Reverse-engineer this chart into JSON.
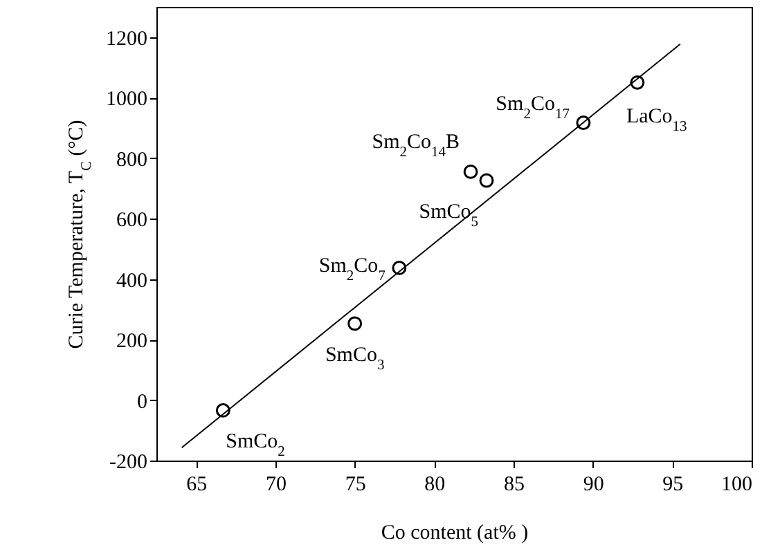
{
  "chart_data": {
    "type": "scatter",
    "xlabel": "Co content (at% )",
    "ylabel": "Curie Temperature, T$_{C}$ (°C)",
    "xlim": [
      62.5,
      100
    ],
    "ylim": [
      -200,
      1300
    ],
    "xticks": [
      65,
      70,
      75,
      80,
      85,
      90,
      95,
      100
    ],
    "yticks": [
      -200,
      0,
      200,
      400,
      600,
      800,
      1000,
      1200
    ],
    "series": [
      {
        "color": "#000000",
        "marker": "circle",
        "x": [
          66.7,
          75.0,
          77.8,
          82.3,
          83.3,
          89.4,
          92.8
        ],
        "values": [
          -34,
          253,
          437,
          755,
          726,
          917,
          1050
        ]
      },
      {
        "type": "line",
        "color": "#000000",
        "marker": "none",
        "x": [
          64.1,
          95.5
        ],
        "values": [
          -157,
          1177
        ]
      }
    ],
    "annotations": [
      {
        "text": "SmCo$_{2}$",
        "x": 66.7,
        "y": -34
      },
      {
        "text": "SmCo$_{3}$",
        "x": 75.0,
        "y": 253
      },
      {
        "text": "Sm$_{2}$Co$_{7}$",
        "x": 77.8,
        "y": 437
      },
      {
        "text": "Sm$_{2}$Co$_{14}$B",
        "x": 82.3,
        "y": 755
      },
      {
        "text": "SmCo$_{5}$",
        "x": 83.3,
        "y": 726
      },
      {
        "text": "Sm$_{2}$Co$_{17}$",
        "x": 89.4,
        "y": 917
      },
      {
        "text": "LaCo$_{13}$",
        "x": 92.8,
        "y": 1050
      }
    ]
  }
}
